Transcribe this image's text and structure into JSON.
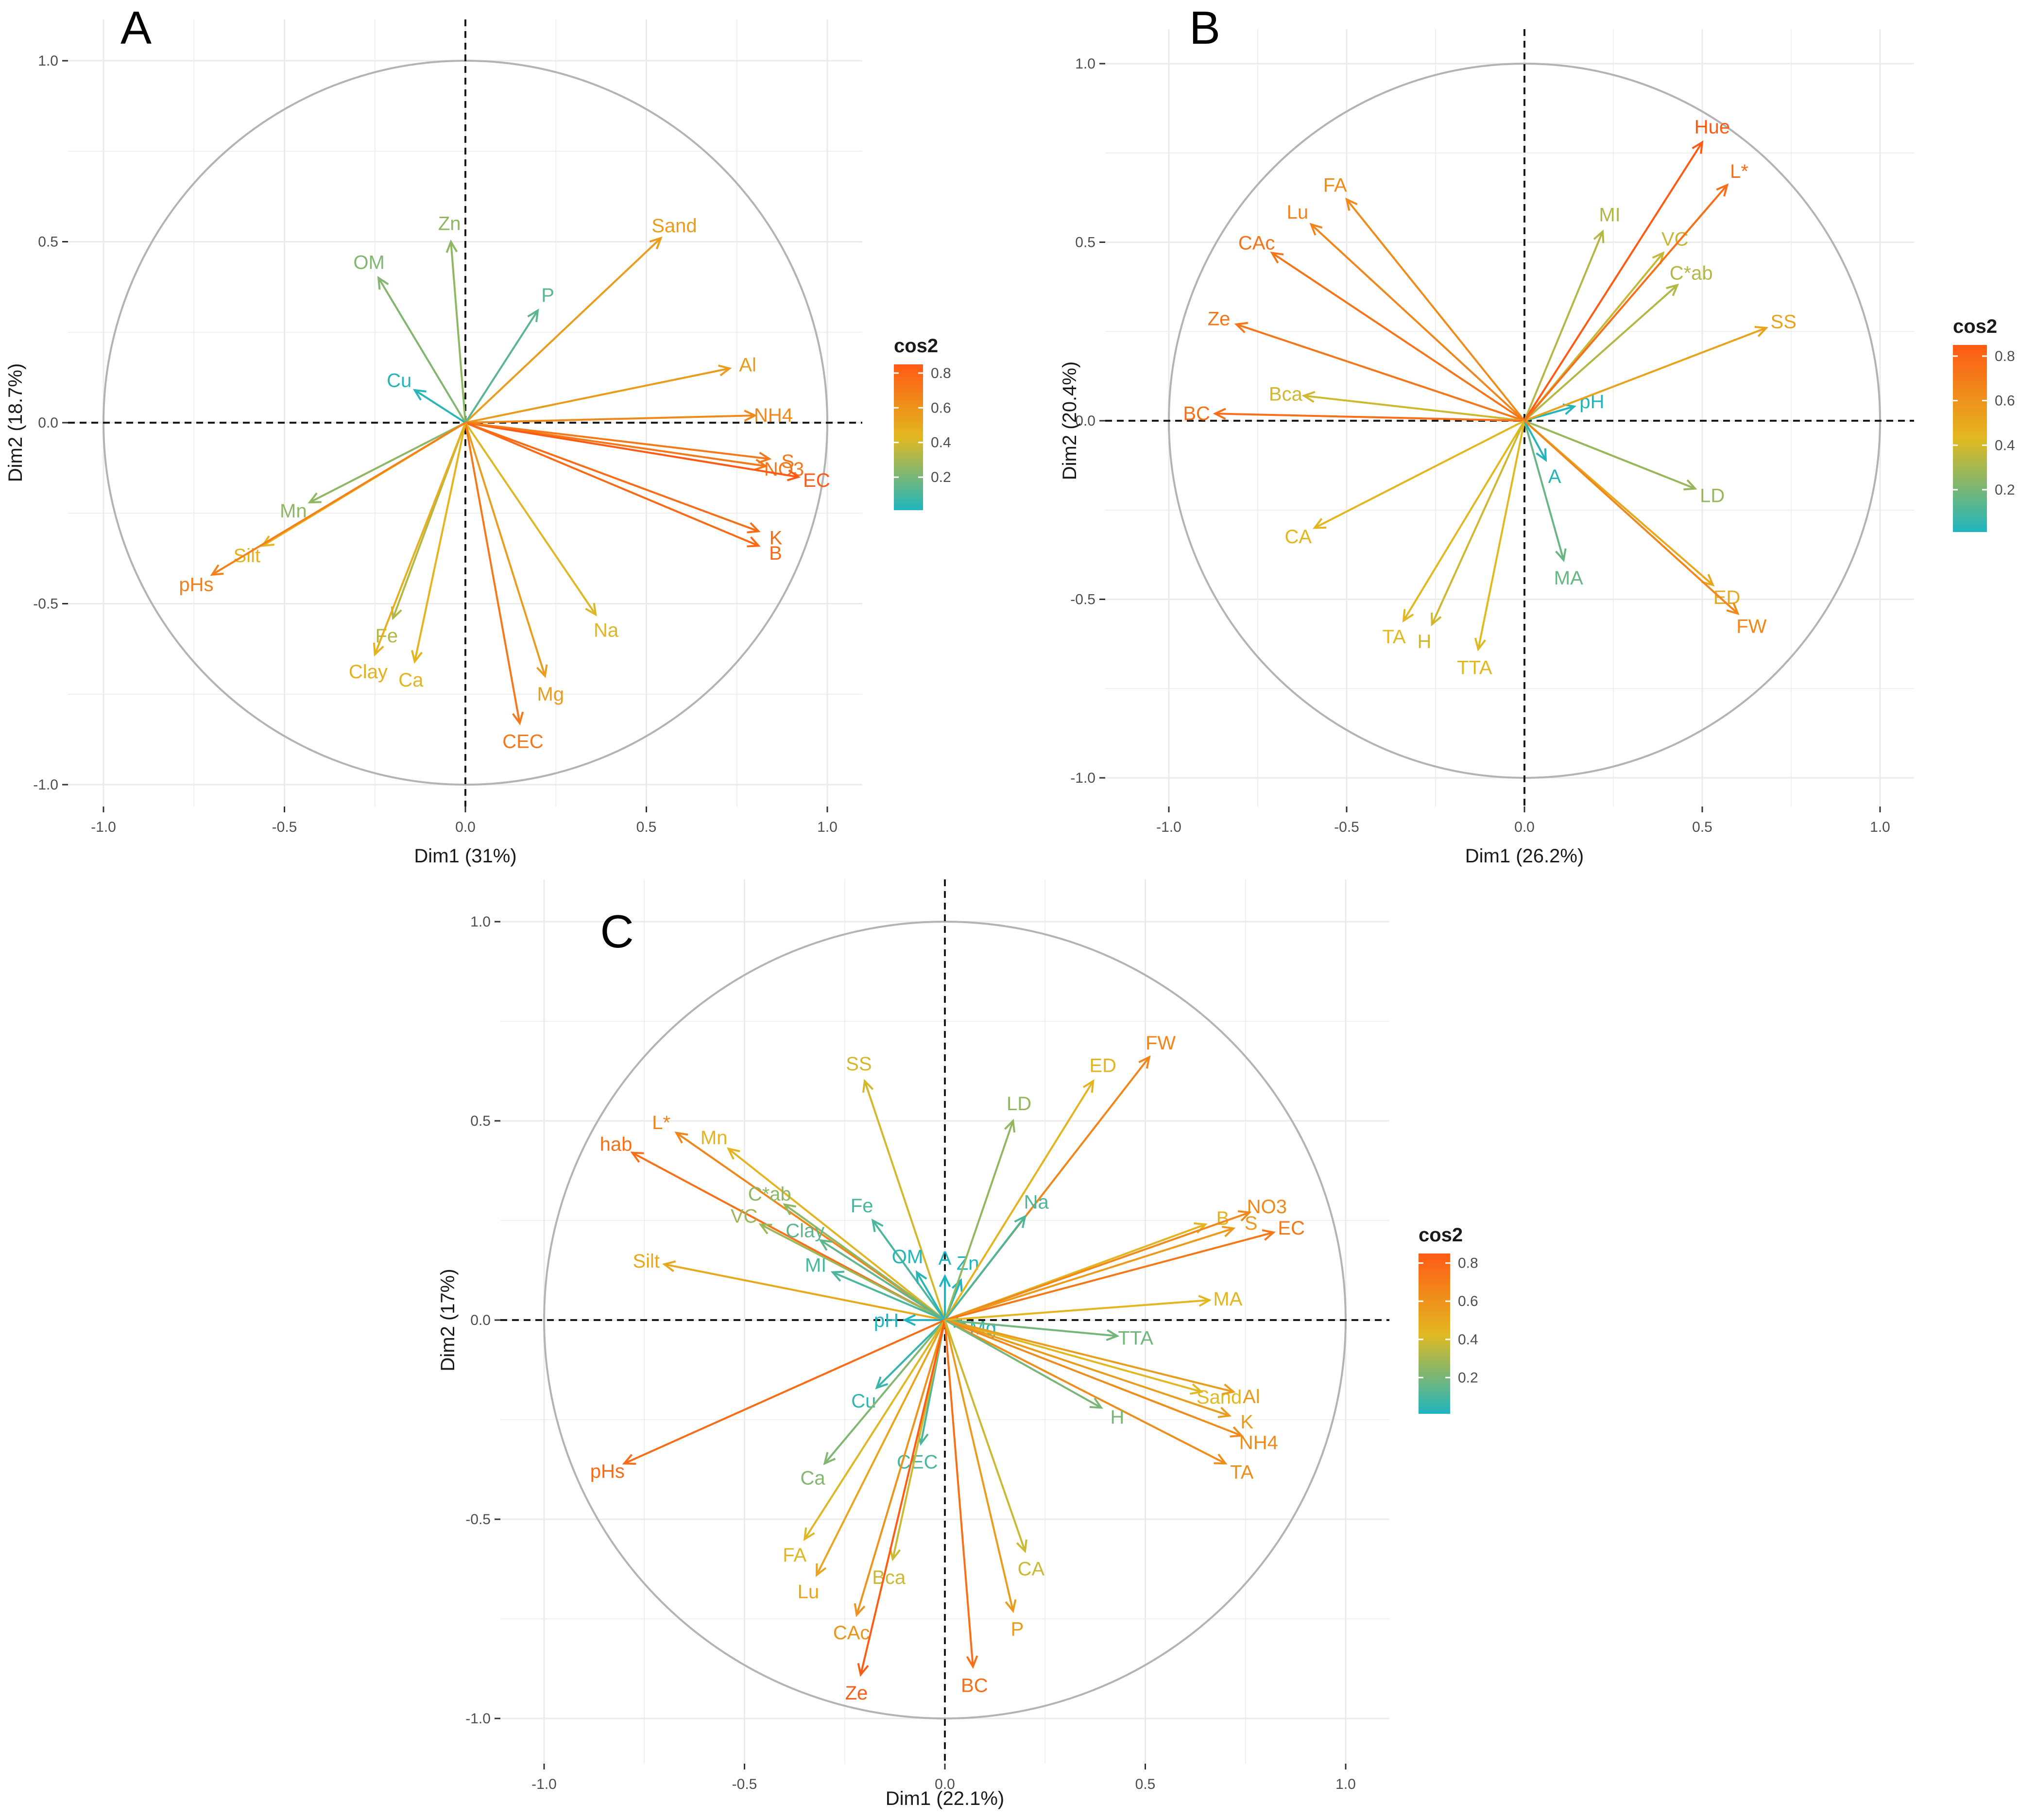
{
  "colors": {
    "low": "#1fb5bf",
    "mid": "#e2b820",
    "high": "#ff5a14",
    "circle": "#b3b3b3",
    "grid": "#ebebeb"
  },
  "chart_data": [
    {
      "panel": "A",
      "type": "scatter",
      "subtype": "pca-variable-correlation-circle",
      "xlabel": "Dim1 (31%)",
      "ylabel": "Dim2 (18.7%)",
      "xlim": [
        -1.0,
        1.0
      ],
      "ylim": [
        -1.0,
        1.0
      ],
      "x_ticks": [
        "-1.0",
        "-0.5",
        "0.0",
        "0.5",
        "1.0"
      ],
      "y_ticks": [
        "-1.0",
        "-0.5",
        "0.0",
        "0.5",
        "1.0"
      ],
      "legend": {
        "title": "cos2",
        "ticks": [
          "0.2",
          "0.4",
          "0.6",
          "0.8"
        ],
        "range": [
          0.01,
          0.85
        ]
      },
      "series": [
        {
          "name": "Sand",
          "x": 0.54,
          "y": 0.51,
          "cos2": 0.55
        },
        {
          "name": "Zn",
          "x": -0.04,
          "y": 0.5,
          "cos2": 0.25
        },
        {
          "name": "OM",
          "x": -0.24,
          "y": 0.4,
          "cos2": 0.22
        },
        {
          "name": "P",
          "x": 0.2,
          "y": 0.31,
          "cos2": 0.14
        },
        {
          "name": "Cu",
          "x": -0.14,
          "y": 0.09,
          "cos2": 0.03
        },
        {
          "name": "Al",
          "x": 0.73,
          "y": 0.15,
          "cos2": 0.56
        },
        {
          "name": "NH4",
          "x": 0.8,
          "y": 0.02,
          "cos2": 0.64
        },
        {
          "name": "NO3",
          "x": 0.83,
          "y": -0.12,
          "cos2": 0.72
        },
        {
          "name": "EC",
          "x": 0.92,
          "y": -0.15,
          "cos2": 0.86
        },
        {
          "name": "S",
          "x": 0.84,
          "y": -0.1,
          "cos2": 0.71
        },
        {
          "name": "K",
          "x": 0.81,
          "y": -0.3,
          "cos2": 0.77
        },
        {
          "name": "B",
          "x": 0.81,
          "y": -0.34,
          "cos2": 0.78
        },
        {
          "name": "Na",
          "x": 0.36,
          "y": -0.53,
          "cos2": 0.42
        },
        {
          "name": "Mg",
          "x": 0.22,
          "y": -0.7,
          "cos2": 0.55
        },
        {
          "name": "CEC",
          "x": 0.15,
          "y": -0.83,
          "cos2": 0.72
        },
        {
          "name": "Ca",
          "x": -0.14,
          "y": -0.66,
          "cos2": 0.45
        },
        {
          "name": "Fe",
          "x": -0.2,
          "y": -0.54,
          "cos2": 0.33
        },
        {
          "name": "Clay",
          "x": -0.25,
          "y": -0.64,
          "cos2": 0.47
        },
        {
          "name": "Mn",
          "x": -0.43,
          "y": -0.22,
          "cos2": 0.25
        },
        {
          "name": "Silt",
          "x": -0.56,
          "y": -0.34,
          "cos2": 0.45
        },
        {
          "name": "pHs",
          "x": -0.7,
          "y": -0.42,
          "cos2": 0.68
        }
      ]
    },
    {
      "panel": "B",
      "type": "scatter",
      "subtype": "pca-variable-correlation-circle",
      "xlabel": "Dim1 (26.2%)",
      "ylabel": "Dim2 (20.4%)",
      "xlim": [
        -1.0,
        1.0
      ],
      "ylim": [
        -1.0,
        1.0
      ],
      "x_ticks": [
        "-1.0",
        "-0.5",
        "0.0",
        "0.5",
        "1.0"
      ],
      "y_ticks": [
        "-1.0",
        "-0.5",
        "0.0",
        "0.5",
        "1.0"
      ],
      "legend": {
        "title": "cos2",
        "ticks": [
          "0.2",
          "0.4",
          "0.6",
          "0.8"
        ],
        "range": [
          0.01,
          0.85
        ]
      },
      "series": [
        {
          "name": "FA",
          "x": -0.5,
          "y": 0.62,
          "cos2": 0.63
        },
        {
          "name": "Lu",
          "x": -0.6,
          "y": 0.55,
          "cos2": 0.66
        },
        {
          "name": "CAc",
          "x": -0.71,
          "y": 0.47,
          "cos2": 0.74
        },
        {
          "name": "Ze",
          "x": -0.81,
          "y": 0.27,
          "cos2": 0.73
        },
        {
          "name": "Bca",
          "x": -0.62,
          "y": 0.07,
          "cos2": 0.39
        },
        {
          "name": "BC",
          "x": -0.87,
          "y": 0.02,
          "cos2": 0.76
        },
        {
          "name": "CA",
          "x": -0.59,
          "y": -0.3,
          "cos2": 0.44
        },
        {
          "name": "TA",
          "x": -0.34,
          "y": -0.56,
          "cos2": 0.43
        },
        {
          "name": "H",
          "x": -0.26,
          "y": -0.57,
          "cos2": 0.39
        },
        {
          "name": "TTA",
          "x": -0.13,
          "y": -0.64,
          "cos2": 0.43
        },
        {
          "name": "MA",
          "x": 0.11,
          "y": -0.39,
          "cos2": 0.17
        },
        {
          "name": "A",
          "x": 0.06,
          "y": -0.11,
          "cos2": 0.02
        },
        {
          "name": "pH",
          "x": 0.14,
          "y": 0.04,
          "cos2": 0.02
        },
        {
          "name": "LD",
          "x": 0.48,
          "y": -0.19,
          "cos2": 0.27
        },
        {
          "name": "ED",
          "x": 0.53,
          "y": -0.46,
          "cos2": 0.5
        },
        {
          "name": "FW",
          "x": 0.6,
          "y": -0.54,
          "cos2": 0.65
        },
        {
          "name": "SS",
          "x": 0.68,
          "y": 0.26,
          "cos2": 0.53
        },
        {
          "name": "C*ab",
          "x": 0.43,
          "y": 0.38,
          "cos2": 0.33
        },
        {
          "name": "VC",
          "x": 0.39,
          "y": 0.47,
          "cos2": 0.37
        },
        {
          "name": "MI",
          "x": 0.22,
          "y": 0.53,
          "cos2": 0.33
        },
        {
          "name": "Hue",
          "x": 0.5,
          "y": 0.78,
          "cos2": 0.86
        },
        {
          "name": "L*",
          "x": 0.57,
          "y": 0.66,
          "cos2": 0.76
        }
      ]
    },
    {
      "panel": "C",
      "type": "scatter",
      "subtype": "pca-variable-correlation-circle",
      "xlabel": "Dim1 (22.1%)",
      "ylabel": "Dim2 (17%)",
      "xlim": [
        -1.0,
        1.0
      ],
      "ylim": [
        -1.0,
        1.0
      ],
      "x_ticks": [
        "-1.0",
        "-0.5",
        "0.0",
        "0.5",
        "1.0"
      ],
      "y_ticks": [
        "-1.0",
        "-0.5",
        "0.0",
        "0.5",
        "1.0"
      ],
      "legend": {
        "title": "cos2",
        "ticks": [
          "0.2",
          "0.4",
          "0.6",
          "0.8"
        ],
        "range": [
          0.01,
          0.85
        ]
      },
      "series": [
        {
          "name": "SS",
          "x": -0.2,
          "y": 0.6,
          "cos2": 0.4
        },
        {
          "name": "L*",
          "x": -0.67,
          "y": 0.47,
          "cos2": 0.66
        },
        {
          "name": "Mn",
          "x": -0.54,
          "y": 0.43,
          "cos2": 0.45
        },
        {
          "name": "hab",
          "x": -0.78,
          "y": 0.42,
          "cos2": 0.76
        },
        {
          "name": "C*ab",
          "x": -0.4,
          "y": 0.29,
          "cos2": 0.25
        },
        {
          "name": "Fe",
          "x": -0.18,
          "y": 0.25,
          "cos2": 0.1
        },
        {
          "name": "VC",
          "x": -0.46,
          "y": 0.24,
          "cos2": 0.28
        },
        {
          "name": "Clay",
          "x": -0.31,
          "y": 0.2,
          "cos2": 0.15
        },
        {
          "name": "Silt",
          "x": -0.7,
          "y": 0.14,
          "cos2": 0.5
        },
        {
          "name": "MI",
          "x": -0.28,
          "y": 0.12,
          "cos2": 0.1
        },
        {
          "name": "OM",
          "x": -0.07,
          "y": 0.12,
          "cos2": 0.03
        },
        {
          "name": "A",
          "x": 0.0,
          "y": 0.11,
          "cos2": 0.01
        },
        {
          "name": "Zn",
          "x": 0.04,
          "y": 0.1,
          "cos2": 0.01
        },
        {
          "name": "Mg",
          "x": 0.05,
          "y": -0.01,
          "cos2": 0.01
        },
        {
          "name": "pH",
          "x": -0.1,
          "y": 0.0,
          "cos2": 0.01
        },
        {
          "name": "LD",
          "x": 0.17,
          "y": 0.5,
          "cos2": 0.26
        },
        {
          "name": "ED",
          "x": 0.37,
          "y": 0.6,
          "cos2": 0.45
        },
        {
          "name": "FW",
          "x": 0.51,
          "y": 0.66,
          "cos2": 0.66
        },
        {
          "name": "Na",
          "x": 0.2,
          "y": 0.26,
          "cos2": 0.11
        },
        {
          "name": "B",
          "x": 0.65,
          "y": 0.24,
          "cos2": 0.45
        },
        {
          "name": "NO3",
          "x": 0.76,
          "y": 0.27,
          "cos2": 0.64
        },
        {
          "name": "S",
          "x": 0.72,
          "y": 0.23,
          "cos2": 0.57
        },
        {
          "name": "EC",
          "x": 0.82,
          "y": 0.22,
          "cos2": 0.72
        },
        {
          "name": "TTA",
          "x": 0.43,
          "y": -0.04,
          "cos2": 0.19
        },
        {
          "name": "MA",
          "x": 0.66,
          "y": 0.05,
          "cos2": 0.44
        },
        {
          "name": "Sand",
          "x": 0.64,
          "y": -0.18,
          "cos2": 0.43
        },
        {
          "name": "Al",
          "x": 0.72,
          "y": -0.18,
          "cos2": 0.55
        },
        {
          "name": "K",
          "x": 0.71,
          "y": -0.24,
          "cos2": 0.56
        },
        {
          "name": "NH4",
          "x": 0.74,
          "y": -0.29,
          "cos2": 0.63
        },
        {
          "name": "TA",
          "x": 0.7,
          "y": -0.36,
          "cos2": 0.62
        },
        {
          "name": "H",
          "x": 0.39,
          "y": -0.22,
          "cos2": 0.2
        },
        {
          "name": "Cu",
          "x": -0.17,
          "y": -0.17,
          "cos2": 0.06
        },
        {
          "name": "Ca",
          "x": -0.3,
          "y": -0.36,
          "cos2": 0.22
        },
        {
          "name": "CEC",
          "x": -0.06,
          "y": -0.31,
          "cos2": 0.1
        },
        {
          "name": "pHs",
          "x": -0.8,
          "y": -0.36,
          "cos2": 0.77
        },
        {
          "name": "FA",
          "x": -0.35,
          "y": -0.55,
          "cos2": 0.42
        },
        {
          "name": "Lu",
          "x": -0.32,
          "y": -0.64,
          "cos2": 0.51
        },
        {
          "name": "Bca",
          "x": -0.13,
          "y": -0.6,
          "cos2": 0.38
        },
        {
          "name": "CAc",
          "x": -0.22,
          "y": -0.74,
          "cos2": 0.6
        },
        {
          "name": "Ze",
          "x": -0.21,
          "y": -0.89,
          "cos2": 0.84
        },
        {
          "name": "BC",
          "x": 0.07,
          "y": -0.87,
          "cos2": 0.76
        },
        {
          "name": "P",
          "x": 0.17,
          "y": -0.73,
          "cos2": 0.56
        },
        {
          "name": "CA",
          "x": 0.2,
          "y": -0.58,
          "cos2": 0.38
        }
      ]
    }
  ]
}
